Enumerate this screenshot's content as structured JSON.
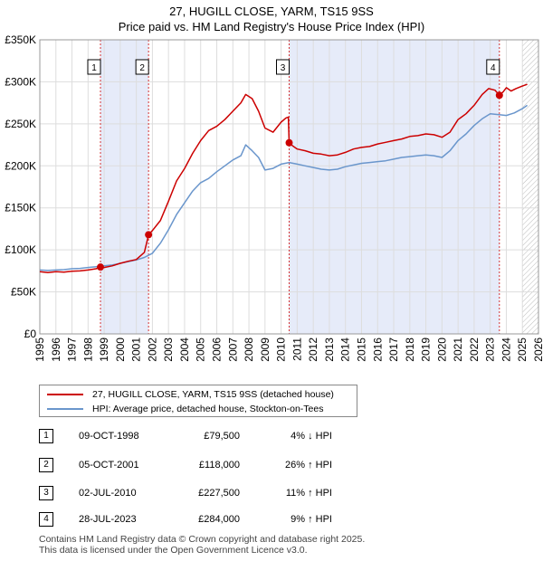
{
  "chart_data": {
    "type": "line",
    "title": "27, HUGILL CLOSE, YARM, TS15 9SS",
    "subtitle": "Price paid vs. HM Land Registry's House Price Index (HPI)",
    "xlabel": "",
    "ylabel": "",
    "xlim": [
      1995,
      2026
    ],
    "ylim": [
      0,
      350000
    ],
    "y_ticks": [
      {
        "value": 0,
        "label": "£0"
      },
      {
        "value": 50000,
        "label": "£50K"
      },
      {
        "value": 100000,
        "label": "£100K"
      },
      {
        "value": 150000,
        "label": "£150K"
      },
      {
        "value": 200000,
        "label": "£200K"
      },
      {
        "value": 250000,
        "label": "£250K"
      },
      {
        "value": 300000,
        "label": "£300K"
      },
      {
        "value": 350000,
        "label": "£350K"
      }
    ],
    "x_ticks": [
      "1995",
      "1996",
      "1997",
      "1998",
      "1999",
      "2000",
      "2001",
      "2002",
      "2003",
      "2004",
      "2005",
      "2006",
      "2007",
      "2008",
      "2009",
      "2010",
      "2011",
      "2012",
      "2013",
      "2014",
      "2015",
      "2016",
      "2017",
      "2018",
      "2019",
      "2020",
      "2021",
      "2022",
      "2023",
      "2024",
      "2025",
      "2026"
    ],
    "grid": true,
    "shaded_periods": [
      [
        1998.77,
        2001.76
      ],
      [
        2010.5,
        2023.57
      ]
    ],
    "forecast_start": 2025.0,
    "series": [
      {
        "name": "27, HUGILL CLOSE, YARM, TS15 9SS (detached house)",
        "color": "#cc0000",
        "x": [
          1995.0,
          1995.5,
          1996.0,
          1996.5,
          1997.0,
          1997.5,
          1998.0,
          1998.5,
          1998.77,
          1999.0,
          1999.5,
          2000.0,
          2000.5,
          2001.0,
          2001.5,
          2001.76,
          2002.0,
          2002.5,
          2003.0,
          2003.5,
          2004.0,
          2004.5,
          2005.0,
          2005.5,
          2006.0,
          2006.5,
          2007.0,
          2007.5,
          2007.8,
          2008.2,
          2008.6,
          2009.0,
          2009.5,
          2010.0,
          2010.3,
          2010.45,
          2010.5,
          2010.7,
          2011.0,
          2011.5,
          2012.0,
          2012.5,
          2013.0,
          2013.5,
          2014.0,
          2014.5,
          2015.0,
          2015.5,
          2016.0,
          2016.5,
          2017.0,
          2017.5,
          2018.0,
          2018.5,
          2019.0,
          2019.5,
          2020.0,
          2020.5,
          2021.0,
          2021.5,
          2022.0,
          2022.5,
          2022.9,
          2023.3,
          2023.57,
          2023.8,
          2024.0,
          2024.3,
          2024.6,
          2025.0,
          2025.3
        ],
        "values": [
          74000,
          73000,
          74000,
          73500,
          74500,
          75000,
          76000,
          77500,
          79500,
          79000,
          81000,
          84000,
          86500,
          88500,
          97000,
          118000,
          123000,
          135000,
          158000,
          182000,
          197000,
          215000,
          230000,
          242000,
          247000,
          255000,
          265000,
          275000,
          285000,
          280000,
          265000,
          245000,
          240000,
          252000,
          257000,
          258000,
          227500,
          224000,
          220000,
          218000,
          215000,
          214000,
          212000,
          213000,
          216000,
          220000,
          222000,
          223000,
          226000,
          228000,
          230000,
          232000,
          235000,
          236000,
          238000,
          237000,
          234000,
          240000,
          255000,
          262000,
          272000,
          285000,
          292000,
          290000,
          284000,
          288000,
          293000,
          289000,
          292000,
          295000,
          297000
        ]
      },
      {
        "name": "HPI: Average price, detached house, Stockton-on-Tees",
        "color": "#6a96cc",
        "x": [
          1995.0,
          1995.5,
          1996.0,
          1996.5,
          1997.0,
          1997.5,
          1998.0,
          1998.5,
          1999.0,
          1999.5,
          2000.0,
          2000.5,
          2001.0,
          2001.5,
          2002.0,
          2002.5,
          2003.0,
          2003.5,
          2004.0,
          2004.5,
          2005.0,
          2005.5,
          2006.0,
          2006.5,
          2007.0,
          2007.5,
          2007.8,
          2008.2,
          2008.6,
          2009.0,
          2009.5,
          2010.0,
          2010.5,
          2011.0,
          2011.5,
          2012.0,
          2012.5,
          2013.0,
          2013.5,
          2014.0,
          2014.5,
          2015.0,
          2015.5,
          2016.0,
          2016.5,
          2017.0,
          2017.5,
          2018.0,
          2018.5,
          2019.0,
          2019.5,
          2020.0,
          2020.5,
          2021.0,
          2021.5,
          2022.0,
          2022.5,
          2023.0,
          2023.5,
          2024.0,
          2024.5,
          2025.0,
          2025.3
        ],
        "values": [
          76000,
          75500,
          76000,
          76500,
          77500,
          78000,
          79000,
          80000,
          81000,
          82000,
          84000,
          86000,
          88000,
          91000,
          96000,
          108000,
          124000,
          142000,
          156000,
          170000,
          180000,
          185000,
          193000,
          200000,
          207000,
          212000,
          225000,
          218000,
          210000,
          195000,
          197000,
          202000,
          204000,
          202000,
          200000,
          198000,
          196000,
          195000,
          196000,
          199000,
          201000,
          203000,
          204000,
          205000,
          206000,
          208000,
          210000,
          211000,
          212000,
          213000,
          212000,
          210000,
          218000,
          230000,
          238000,
          248000,
          256000,
          262000,
          261000,
          260000,
          263000,
          268000,
          272000
        ]
      }
    ],
    "sales": [
      {
        "num": "1",
        "date": "09-OCT-1998",
        "x": 1998.77,
        "price": 79500,
        "price_label": "£79,500",
        "hpi": "4% ↓ HPI"
      },
      {
        "num": "2",
        "date": "05-OCT-2001",
        "x": 2001.76,
        "price": 118000,
        "price_label": "£118,000",
        "hpi": "26% ↑ HPI"
      },
      {
        "num": "3",
        "date": "02-JUL-2010",
        "x": 2010.5,
        "price": 227500,
        "price_label": "£227,500",
        "hpi": "11% ↑ HPI"
      },
      {
        "num": "4",
        "date": "28-JUL-2023",
        "x": 2023.57,
        "price": 284000,
        "price_label": "£284,000",
        "hpi": "9% ↑ HPI"
      }
    ]
  },
  "legend": {
    "property_label": "27, HUGILL CLOSE, YARM, TS15 9SS (detached house)",
    "hpi_label": "HPI: Average price, detached house, Stockton-on-Tees",
    "property_color": "#cc0000",
    "hpi_color": "#6a96cc"
  },
  "footer": {
    "line1": "Contains HM Land Registry data © Crown copyright and database right 2025.",
    "line2": "This data is licensed under the Open Government Licence v3.0."
  }
}
